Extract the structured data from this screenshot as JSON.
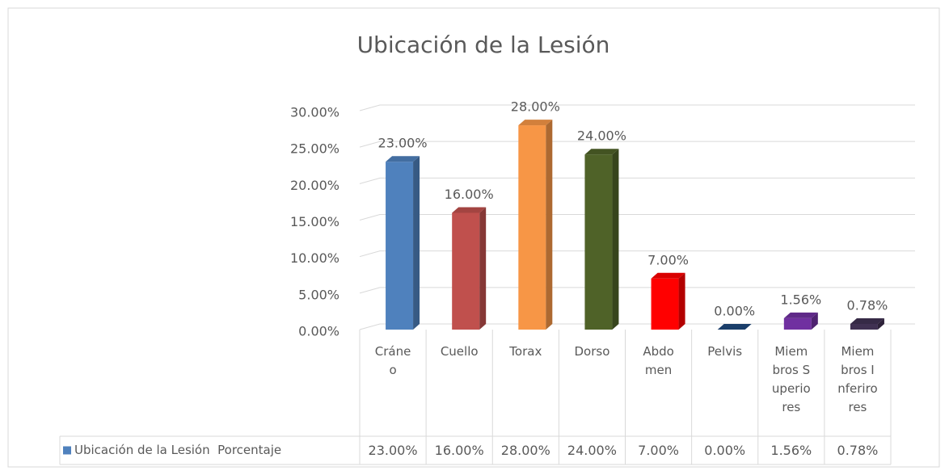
{
  "chart_data": {
    "type": "bar3d",
    "title": "Ubicación de la Lesión",
    "categories": [
      "Cráneo",
      "Cuello",
      "Torax",
      "Dorso",
      "Abdomen",
      "Pelvis",
      "Miembros Superiores",
      "Miembros Inferirores"
    ],
    "series": [
      {
        "name": "Ubicación de la Lesión  Porcentaje",
        "color": "#4f81bd",
        "colors": [
          "#4f81bd",
          "#c0504d",
          "#f79646",
          "#4f6228",
          "#ff0000",
          "#1f497d",
          "#7030a0",
          "#403152"
        ],
        "values": [
          23,
          16,
          28,
          24,
          7,
          0,
          1.56,
          0.78
        ],
        "value_labels": [
          "23.00%",
          "16.00%",
          "28.00%",
          "24.00%",
          "7.00%",
          "0.00%",
          "1.56%",
          "0.78%"
        ]
      }
    ],
    "ylim": [
      0,
      30
    ],
    "yticks": [
      {
        "value": 0,
        "label": "0.00%"
      },
      {
        "value": 5,
        "label": "5.00%"
      },
      {
        "value": 10,
        "label": "10.00%"
      },
      {
        "value": 15,
        "label": "15.00%"
      },
      {
        "value": 20,
        "label": "20.00%"
      },
      {
        "value": 25,
        "label": "25.00%"
      },
      {
        "value": 30,
        "label": "30.00%"
      }
    ],
    "grid": true,
    "data_table": true
  }
}
